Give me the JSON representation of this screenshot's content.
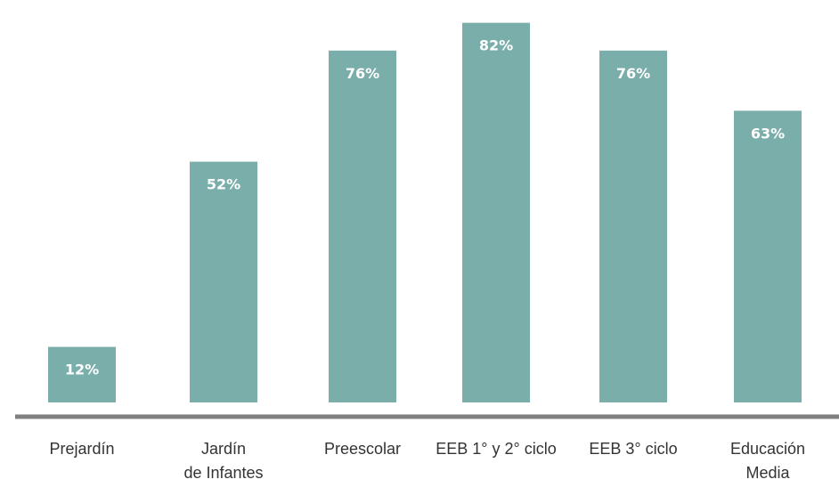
{
  "chart_data": {
    "type": "bar",
    "categories": [
      [
        "Prejardín"
      ],
      [
        "Jardín",
        "de Infantes"
      ],
      [
        "Preescolar"
      ],
      [
        "EEB 1° y 2° ciclo"
      ],
      [
        "EEB 3° ciclo"
      ],
      [
        "Educación",
        "Media"
      ]
    ],
    "values": [
      12,
      52,
      76,
      82,
      76,
      63
    ],
    "data_labels": [
      "12%",
      "52%",
      "76%",
      "82%",
      "76%",
      "63%"
    ],
    "title": "",
    "xlabel": "",
    "ylabel": "",
    "ylim": [
      0,
      86
    ],
    "grid": false,
    "legend": "none",
    "bar_color": "#7aaeab",
    "axis_color": "#808080"
  }
}
